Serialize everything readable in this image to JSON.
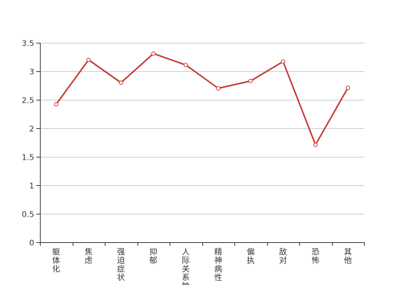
{
  "chart_data": {
    "type": "line",
    "categories": [
      "躯体化",
      "焦虑",
      "强迫症状",
      "抑郁",
      "人际关系敏感",
      "精神病性",
      "偏执",
      "敌对",
      "恐怖",
      "其他"
    ],
    "series": [
      {
        "values": [
          2.42,
          3.2,
          2.8,
          3.31,
          3.11,
          2.7,
          2.83,
          3.17,
          1.71,
          2.71
        ]
      }
    ],
    "y_ticks": [
      "0",
      "0.5",
      "1",
      "1.5",
      "2",
      "2.5",
      "3",
      "3.5"
    ],
    "ylim": [
      0,
      3.5
    ],
    "grid": true,
    "line_color": "#c23531",
    "title": "",
    "xlabel": "",
    "ylabel": ""
  }
}
